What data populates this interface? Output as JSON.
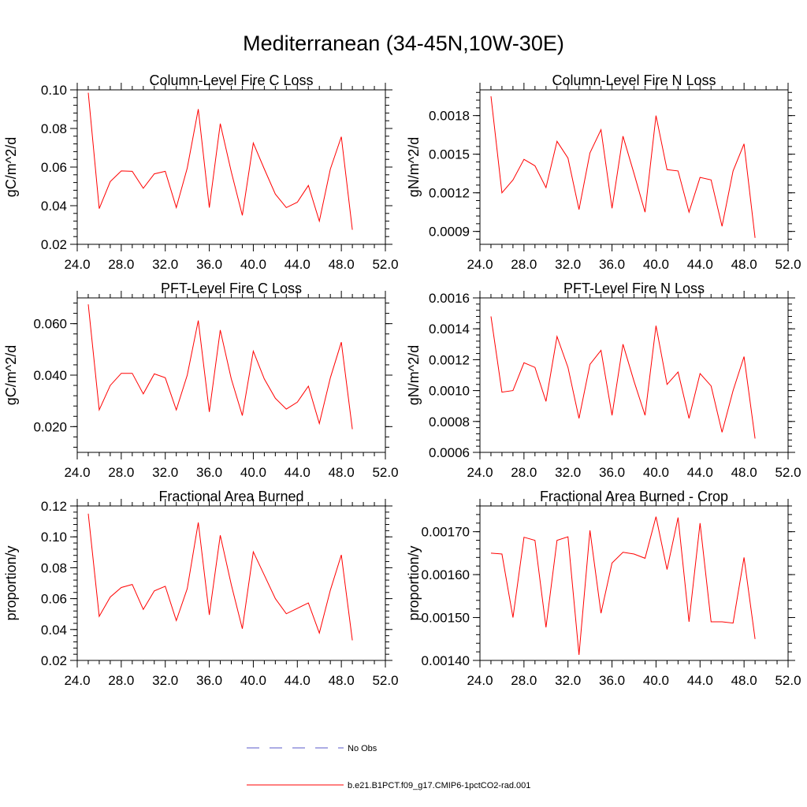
{
  "figure": {
    "title": "Mediterranean (34-45N,10W-30E)",
    "line_color": "#ff0000",
    "obs_color": "#5a5ac8"
  },
  "legend": {
    "items": [
      {
        "label": "No Obs",
        "style": "dashed",
        "color": "#5a5ac8"
      },
      {
        "label": "b.e21.B1PCT.f09_g17.CMIP6-1pctCO2-rad.001",
        "style": "solid",
        "color": "#ff0000"
      }
    ]
  },
  "chart_data": [
    {
      "type": "line",
      "title": "Column-Level Fire C Loss",
      "ylabel": "gC/m^2/d",
      "xlim": [
        24,
        52
      ],
      "ylim": [
        0.02,
        0.1
      ],
      "xticks": [
        "24.0",
        "28.0",
        "32.0",
        "36.0",
        "40.0",
        "44.0",
        "48.0",
        "52.0"
      ],
      "yticks": [
        {
          "v": 0.02,
          "label": "0.02"
        },
        {
          "v": 0.04,
          "label": "0.04"
        },
        {
          "v": 0.06,
          "label": "0.06"
        },
        {
          "v": 0.08,
          "label": "0.08"
        },
        {
          "v": 0.1,
          "label": "0.10"
        }
      ],
      "x": [
        25,
        26,
        27,
        28,
        29,
        30,
        31,
        32,
        33,
        34,
        35,
        36,
        37,
        38,
        39,
        40,
        41,
        42,
        43,
        44,
        45,
        46,
        47,
        48,
        49
      ],
      "values": [
        0.0985,
        0.0385,
        0.0525,
        0.058,
        0.0578,
        0.049,
        0.0565,
        0.0578,
        0.039,
        0.0595,
        0.09,
        0.039,
        0.0825,
        0.0575,
        0.035,
        0.0725,
        0.059,
        0.046,
        0.039,
        0.0418,
        0.0505,
        0.032,
        0.059,
        0.0757,
        0.0275
      ]
    },
    {
      "type": "line",
      "title": "Column-Level Fire N Loss",
      "ylabel": "gN/m^2/d",
      "xlim": [
        24,
        52
      ],
      "ylim": [
        0.0008,
        0.002
      ],
      "xticks": [
        "24.0",
        "28.0",
        "32.0",
        "36.0",
        "40.0",
        "44.0",
        "48.0",
        "52.0"
      ],
      "yticks": [
        {
          "v": 0.0009,
          "label": "0.0009"
        },
        {
          "v": 0.0012,
          "label": "0.0012"
        },
        {
          "v": 0.0015,
          "label": "0.0015"
        },
        {
          "v": 0.0018,
          "label": "0.0018"
        }
      ],
      "x": [
        25,
        26,
        27,
        28,
        29,
        30,
        31,
        32,
        33,
        34,
        35,
        36,
        37,
        38,
        39,
        40,
        41,
        42,
        43,
        44,
        45,
        46,
        47,
        48,
        49
      ],
      "values": [
        0.00195,
        0.0012,
        0.0013,
        0.00146,
        0.00141,
        0.00124,
        0.0016,
        0.00147,
        0.00107,
        0.00151,
        0.00169,
        0.00108,
        0.00164,
        0.00135,
        0.00105,
        0.0018,
        0.00138,
        0.00137,
        0.00105,
        0.00132,
        0.0013,
        0.00094,
        0.00137,
        0.00158,
        0.00085
      ]
    },
    {
      "type": "line",
      "title": "PFT-Level Fire C Loss",
      "ylabel": "gC/m^2/d",
      "xlim": [
        24,
        52
      ],
      "ylim": [
        0.01,
        0.07
      ],
      "xticks": [
        "24.0",
        "28.0",
        "32.0",
        "36.0",
        "40.0",
        "44.0",
        "48.0",
        "52.0"
      ],
      "yticks": [
        {
          "v": 0.02,
          "label": "0.020"
        },
        {
          "v": 0.04,
          "label": "0.040"
        },
        {
          "v": 0.06,
          "label": "0.060"
        }
      ],
      "x": [
        25,
        26,
        27,
        28,
        29,
        30,
        31,
        32,
        33,
        34,
        35,
        36,
        37,
        38,
        39,
        40,
        41,
        42,
        43,
        44,
        45,
        46,
        47,
        48,
        49
      ],
      "values": [
        0.0675,
        0.0265,
        0.036,
        0.0407,
        0.0407,
        0.0327,
        0.0405,
        0.039,
        0.0265,
        0.04,
        0.0612,
        0.0257,
        0.0575,
        0.0385,
        0.0243,
        0.0493,
        0.0385,
        0.031,
        0.0268,
        0.0295,
        0.0357,
        0.0212,
        0.039,
        0.0528,
        0.019
      ]
    },
    {
      "type": "line",
      "title": "PFT-Level Fire N Loss",
      "ylabel": "gN/m^2/d",
      "xlim": [
        24,
        52
      ],
      "ylim": [
        0.0006,
        0.0016
      ],
      "xticks": [
        "24.0",
        "28.0",
        "32.0",
        "36.0",
        "40.0",
        "44.0",
        "48.0",
        "52.0"
      ],
      "yticks": [
        {
          "v": 0.0006,
          "label": "0.0006"
        },
        {
          "v": 0.0008,
          "label": "0.0008"
        },
        {
          "v": 0.001,
          "label": "0.0010"
        },
        {
          "v": 0.0012,
          "label": "0.0012"
        },
        {
          "v": 0.0014,
          "label": "0.0014"
        },
        {
          "v": 0.0016,
          "label": "0.0016"
        }
      ],
      "x": [
        25,
        26,
        27,
        28,
        29,
        30,
        31,
        32,
        33,
        34,
        35,
        36,
        37,
        38,
        39,
        40,
        41,
        42,
        43,
        44,
        45,
        46,
        47,
        48,
        49
      ],
      "values": [
        0.00148,
        0.00099,
        0.001,
        0.00118,
        0.00115,
        0.00093,
        0.00135,
        0.00115,
        0.00082,
        0.00117,
        0.00126,
        0.00084,
        0.0013,
        0.00106,
        0.00084,
        0.00142,
        0.00104,
        0.00112,
        0.00082,
        0.00111,
        0.00103,
        0.00073,
        0.001,
        0.00122,
        0.00069
      ]
    },
    {
      "type": "line",
      "title": "Fractional Area Burned",
      "ylabel": "proportion/y",
      "xlim": [
        24,
        52
      ],
      "ylim": [
        0.02,
        0.12
      ],
      "xticks": [
        "24.0",
        "28.0",
        "32.0",
        "36.0",
        "40.0",
        "44.0",
        "48.0",
        "52.0"
      ],
      "yticks": [
        {
          "v": 0.02,
          "label": "0.02"
        },
        {
          "v": 0.04,
          "label": "0.04"
        },
        {
          "v": 0.06,
          "label": "0.06"
        },
        {
          "v": 0.08,
          "label": "0.08"
        },
        {
          "v": 0.1,
          "label": "0.10"
        },
        {
          "v": 0.12,
          "label": "0.12"
        }
      ],
      "x": [
        25,
        26,
        27,
        28,
        29,
        30,
        31,
        32,
        33,
        34,
        35,
        36,
        37,
        38,
        39,
        40,
        41,
        42,
        43,
        44,
        45,
        46,
        47,
        48,
        49
      ],
      "values": [
        0.115,
        0.0485,
        0.061,
        0.0672,
        0.0692,
        0.053,
        0.065,
        0.068,
        0.0458,
        0.0665,
        0.1093,
        0.0495,
        0.101,
        0.069,
        0.0405,
        0.0903,
        0.0752,
        0.06,
        0.0502,
        0.0537,
        0.0572,
        0.0377,
        0.0655,
        0.0883,
        0.033
      ]
    },
    {
      "type": "line",
      "title": "Fractional Area Burned - Crop",
      "ylabel": "proportion/y",
      "xlim": [
        24,
        52
      ],
      "ylim": [
        0.0014,
        0.00176
      ],
      "xticks": [
        "24.0",
        "28.0",
        "32.0",
        "36.0",
        "40.0",
        "44.0",
        "48.0",
        "52.0"
      ],
      "yticks": [
        {
          "v": 0.0014,
          "label": "0.00140"
        },
        {
          "v": 0.0015,
          "label": "0.00150"
        },
        {
          "v": 0.0016,
          "label": "0.00160"
        },
        {
          "v": 0.0017,
          "label": "0.00170"
        }
      ],
      "x": [
        25,
        26,
        27,
        28,
        29,
        30,
        31,
        32,
        33,
        34,
        35,
        36,
        37,
        38,
        39,
        40,
        41,
        42,
        43,
        44,
        45,
        46,
        47,
        48,
        49
      ],
      "values": [
        0.00165,
        0.001648,
        0.0015,
        0.001687,
        0.00168,
        0.001477,
        0.00168,
        0.001688,
        0.001413,
        0.001703,
        0.00151,
        0.001627,
        0.001652,
        0.001648,
        0.001638,
        0.001735,
        0.001612,
        0.001733,
        0.00149,
        0.00172,
        0.00149,
        0.00149,
        0.001487,
        0.00164,
        0.00145
      ]
    }
  ]
}
